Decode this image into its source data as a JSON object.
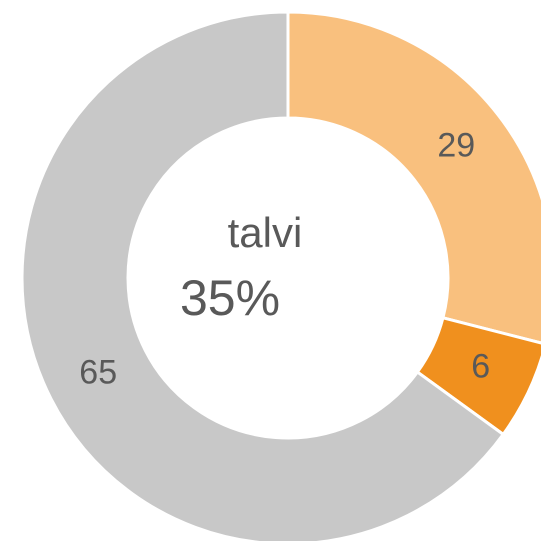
{
  "chart_data": {
    "type": "donut",
    "values": [
      29,
      6,
      65
    ],
    "colors": [
      "#f9c07e",
      "#f0901e",
      "#c8c8c8"
    ],
    "center_title": "talvi",
    "center_value": "35%"
  }
}
